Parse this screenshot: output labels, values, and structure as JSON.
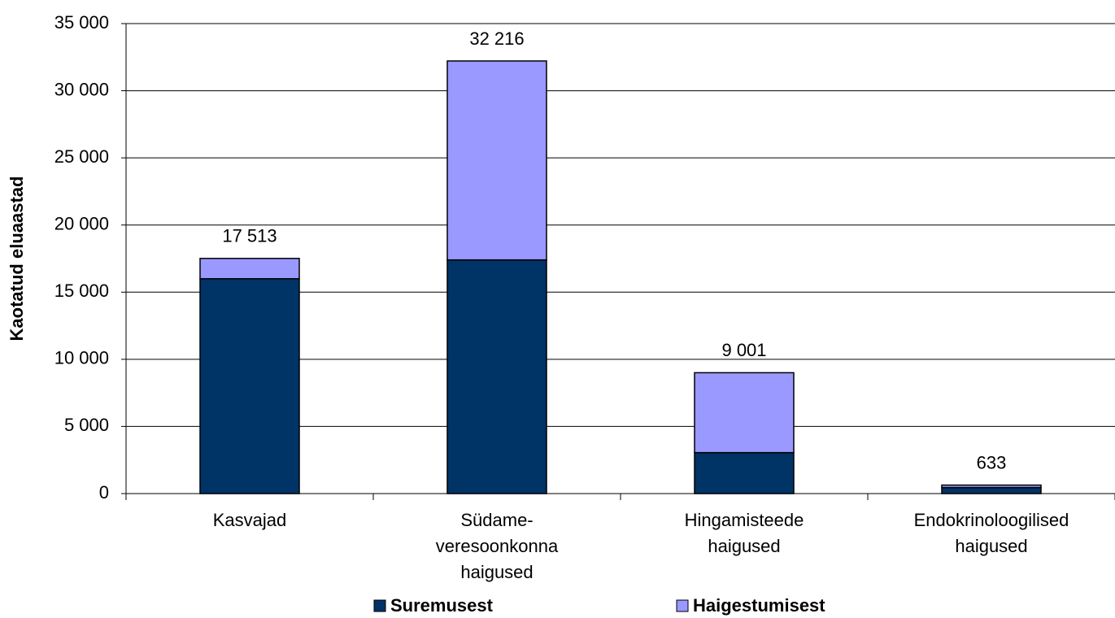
{
  "chart_data": {
    "type": "stacked_bar",
    "y_axis_label": "Kaotatud eluaastad",
    "categories": [
      [
        "Kasvajad"
      ],
      [
        "Südame-",
        "veresoonkonna",
        "haigused"
      ],
      [
        "Hingamisteede",
        "haigused"
      ],
      [
        "Endokrinoloogilised",
        "haigused"
      ]
    ],
    "series": [
      {
        "name": "Suremusest",
        "color": "#003366",
        "values": [
          16000,
          17400,
          3050,
          450
        ]
      },
      {
        "name": "Haigestumisest",
        "color": "#9999ff",
        "values": [
          1513,
          14816,
          5951,
          183
        ]
      }
    ],
    "total_labels": [
      "17 513",
      "32 216",
      "9 001",
      "633"
    ],
    "ylim": [
      0,
      35000
    ],
    "yticks": [
      0,
      {
        "value": 5000,
        "label": "5 000"
      },
      {
        "value": 10000,
        "label": "10 000"
      },
      {
        "value": 15000,
        "label": "15 000"
      },
      {
        "value": 20000,
        "label": "20 000"
      },
      {
        "value": 25000,
        "label": "25 000"
      },
      {
        "value": 30000,
        "label": "30 000"
      },
      {
        "value": 35000,
        "label": "35 000"
      }
    ],
    "grid": true,
    "legend": "bottom"
  }
}
